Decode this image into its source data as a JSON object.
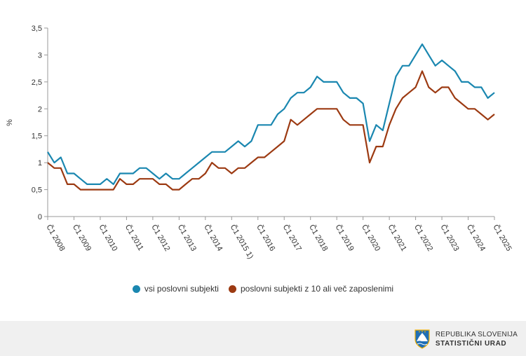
{
  "chart_data": {
    "type": "line",
    "ylabel": "%",
    "ylim": [
      0,
      3.5
    ],
    "yticks": [
      "0",
      "0,5",
      "1",
      "1,5",
      "2",
      "2,5",
      "3",
      "3,5"
    ],
    "xticks": [
      "Č1 2008",
      "Č1 2009",
      "Č1 2010",
      "Č1 2011",
      "Č1 2012",
      "Č1 2013",
      "Č1 2014",
      "Č1 2015 1)",
      "Č1 2016",
      "Č1 2017",
      "Č1 2018",
      "Č1 2019",
      "Č1 2020",
      "Č1 2021",
      "Č1 2022",
      "Č1 2023",
      "Č1 2024",
      "Č1 2025"
    ],
    "series": [
      {
        "name": "vsi poslovni subjekti",
        "color": "#1a87b0",
        "values": [
          1.2,
          1.0,
          1.1,
          0.8,
          0.8,
          0.7,
          0.6,
          0.6,
          0.6,
          0.7,
          0.6,
          0.8,
          0.8,
          0.8,
          0.9,
          0.9,
          0.8,
          0.7,
          0.8,
          0.7,
          0.7,
          0.8,
          0.9,
          1.0,
          1.1,
          1.2,
          1.2,
          1.2,
          1.3,
          1.4,
          1.3,
          1.4,
          1.7,
          1.7,
          1.7,
          1.9,
          2.0,
          2.2,
          2.3,
          2.3,
          2.4,
          2.6,
          2.5,
          2.5,
          2.5,
          2.3,
          2.2,
          2.2,
          2.1,
          1.4,
          1.7,
          1.6,
          2.1,
          2.6,
          2.8,
          2.8,
          3.0,
          3.2,
          3.0,
          2.8,
          2.9,
          2.8,
          2.7,
          2.5,
          2.5,
          2.4,
          2.4,
          2.2,
          2.3
        ]
      },
      {
        "name": "poslovni subjekti z 10 ali več zaposlenimi",
        "color": "#9c3a12",
        "values": [
          1.0,
          0.9,
          0.9,
          0.6,
          0.6,
          0.5,
          0.5,
          0.5,
          0.5,
          0.5,
          0.5,
          0.7,
          0.6,
          0.6,
          0.7,
          0.7,
          0.7,
          0.6,
          0.6,
          0.5,
          0.5,
          0.6,
          0.7,
          0.7,
          0.8,
          1.0,
          0.9,
          0.9,
          0.8,
          0.9,
          0.9,
          1.0,
          1.1,
          1.1,
          1.2,
          1.3,
          1.4,
          1.8,
          1.7,
          1.8,
          1.9,
          2.0,
          2.0,
          2.0,
          2.0,
          1.8,
          1.7,
          1.7,
          1.7,
          1.0,
          1.3,
          1.3,
          1.7,
          2.0,
          2.2,
          2.3,
          2.4,
          2.7,
          2.4,
          2.3,
          2.4,
          2.4,
          2.2,
          2.1,
          2.0,
          2.0,
          1.9,
          1.8,
          1.9
        ]
      }
    ]
  },
  "legend": [
    {
      "label": "vsi poslovni subjekti",
      "color": "#1a87b0"
    },
    {
      "label": "poslovni subjekti z 10 ali več zaposlenimi",
      "color": "#9c3a12"
    }
  ],
  "logo": {
    "line1": "REPUBLIKA SLOVENIJA",
    "line2": "STATISTIČNI URAD"
  }
}
